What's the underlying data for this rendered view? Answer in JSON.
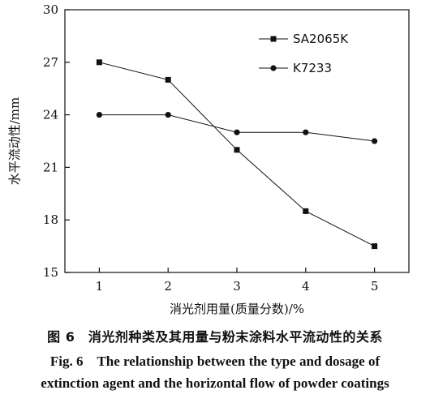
{
  "chart_data": {
    "type": "line",
    "title": "",
    "xlabel": "消光剂用量(质量分数)/%",
    "ylabel": "水平流动性/mm",
    "x": [
      1,
      2,
      3,
      4,
      5
    ],
    "xticks": [
      "1",
      "2",
      "3",
      "4",
      "5"
    ],
    "xlim": [
      0.5,
      5.5
    ],
    "yticks": [
      "15",
      "18",
      "21",
      "24",
      "27",
      "30"
    ],
    "ylim": [
      15,
      30
    ],
    "grid": false,
    "legend_position": "top-right",
    "series": [
      {
        "name": "SA2065K",
        "marker": "square",
        "values": [
          27,
          26,
          22,
          18.5,
          16.5
        ]
      },
      {
        "name": "K7233",
        "marker": "circle",
        "values": [
          24,
          24,
          23,
          23,
          22.5
        ]
      }
    ]
  },
  "caption": {
    "cn": "图 6　消光剂种类及其用量与粉末涂料水平流动性的关系",
    "en_line1": "Fig. 6　The relationship between the type and dosage of",
    "en_line2": "extinction agent and the horizontal flow of powder coatings"
  }
}
